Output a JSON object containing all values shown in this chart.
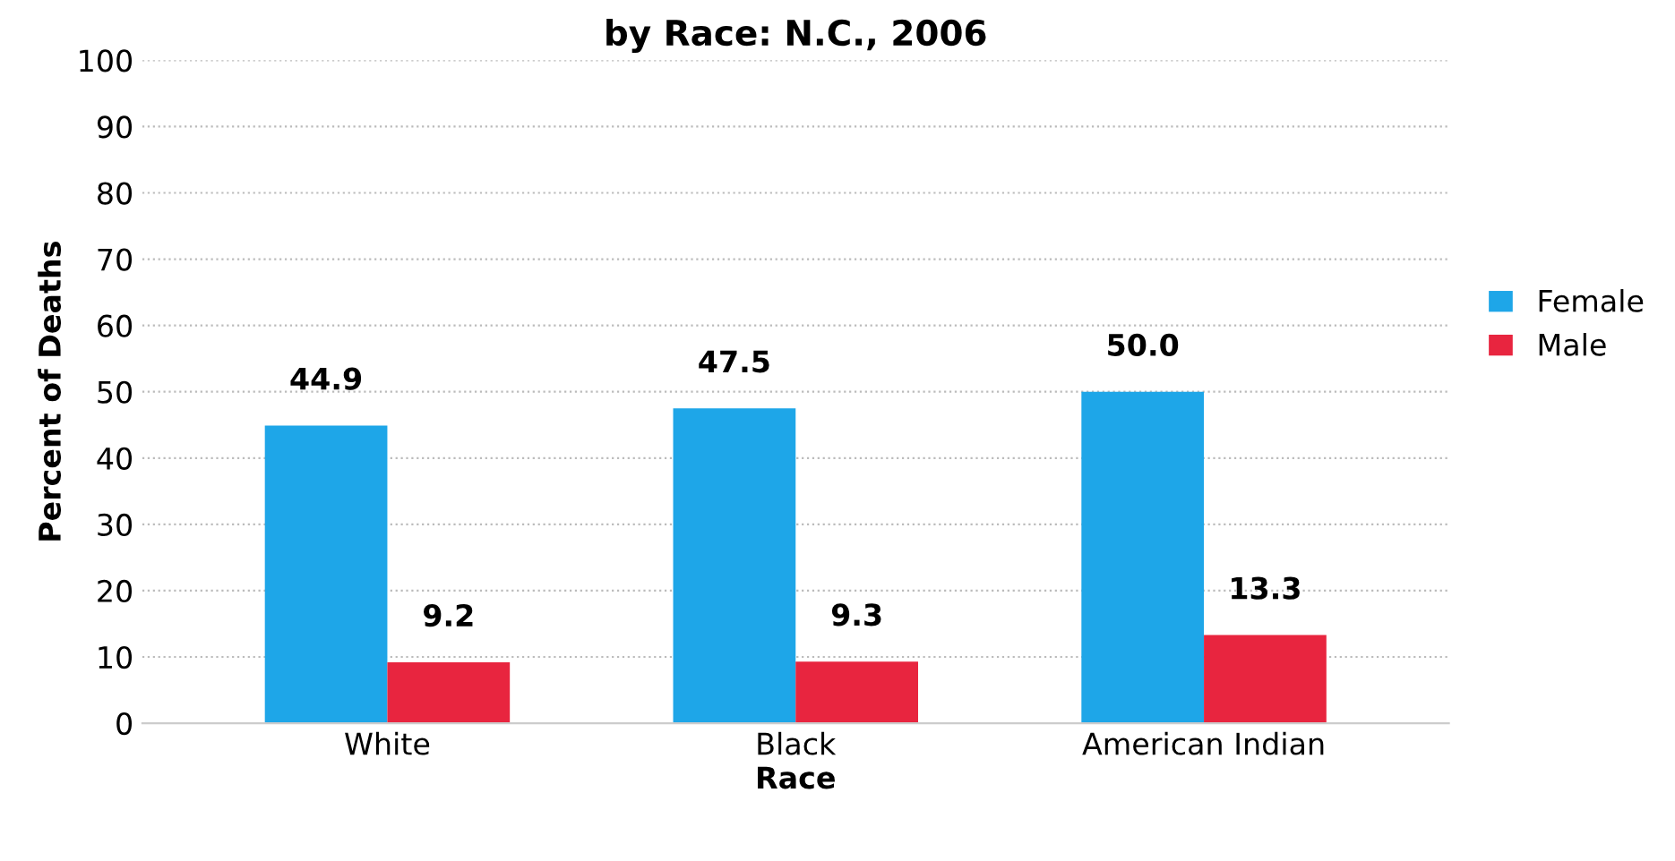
{
  "chart_data": {
    "type": "bar",
    "title": "by Race: N.C., 2006",
    "xlabel": "Race",
    "ylabel": "Percent of Deaths",
    "categories": [
      "White",
      "Black",
      "American Indian"
    ],
    "series": [
      {
        "name": "Female",
        "color": "#1ea6e8",
        "values": [
          44.9,
          47.5,
          50.0
        ],
        "value_labels": [
          "44.9",
          "47.5",
          "50.0"
        ]
      },
      {
        "name": "Male",
        "color": "#e8253f",
        "values": [
          9.2,
          9.3,
          13.3
        ],
        "value_labels": [
          "9.2",
          "9.3",
          "13.3"
        ]
      }
    ],
    "ylim": [
      0,
      100
    ],
    "yticks": [
      0,
      10,
      20,
      30,
      40,
      50,
      60,
      70,
      80,
      90,
      100
    ],
    "grid": "y",
    "legend": "right"
  }
}
